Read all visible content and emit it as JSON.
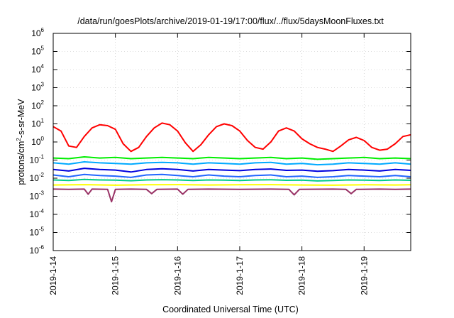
{
  "chart_data": {
    "type": "line",
    "title": "/data/run/goesPlots/archive/2019-01-19/17:00/flux/../flux/5daysMoonFluxes.txt",
    "xlabel": "Coordinated Universal Time (UTC)",
    "ylabel": "protons/cm2-s-sr-MeV",
    "ylabel_parts": {
      "pre": "protons/cm",
      "sup": "2",
      "post": "-s-sr-MeV"
    },
    "y_scale": "log",
    "ylim": [
      1e-06,
      1000000.0
    ],
    "y_ticks": [
      {
        "exp": "-6",
        "value": 1e-06
      },
      {
        "exp": "-5",
        "value": 1e-05
      },
      {
        "exp": "-4",
        "value": 0.0001
      },
      {
        "exp": "-3",
        "value": 0.001
      },
      {
        "exp": "-2",
        "value": 0.01
      },
      {
        "exp": "-1",
        "value": 0.1
      },
      {
        "exp": "0",
        "value": 1
      },
      {
        "exp": "1",
        "value": 10
      },
      {
        "exp": "2",
        "value": 100
      },
      {
        "exp": "3",
        "value": 1000
      },
      {
        "exp": "4",
        "value": 10000
      },
      {
        "exp": "5",
        "value": 100000
      },
      {
        "exp": "6",
        "value": 1000000
      }
    ],
    "y_tick_base": "10",
    "xlim": [
      "2019-01-14",
      "2019-01-19T18:00"
    ],
    "x_ticks": [
      "2019-1-14",
      "2019-1-15",
      "2019-1-16",
      "2019-1-17",
      "2019-1-18",
      "2019-1-19"
    ],
    "x_tick_dates": [
      "2019-01-14",
      "2019-01-15",
      "2019-01-16",
      "2019-01-17",
      "2019-01-18",
      "2019-01-19"
    ],
    "grid": true,
    "legend": "none",
    "series": [
      {
        "color": "#ff0000",
        "x": [
          "2019-01-14T00:00",
          "2019-01-14T03:00",
          "2019-01-14T06:00",
          "2019-01-14T09:00",
          "2019-01-14T12:00",
          "2019-01-14T15:00",
          "2019-01-14T18:00",
          "2019-01-14T21:00",
          "2019-01-15T00:00",
          "2019-01-15T03:00",
          "2019-01-15T06:00",
          "2019-01-15T09:00",
          "2019-01-15T12:00",
          "2019-01-15T15:00",
          "2019-01-15T18:00",
          "2019-01-15T21:00",
          "2019-01-16T00:00",
          "2019-01-16T03:00",
          "2019-01-16T06:00",
          "2019-01-16T09:00",
          "2019-01-16T12:00",
          "2019-01-16T15:00",
          "2019-01-16T18:00",
          "2019-01-16T21:00",
          "2019-01-17T00:00",
          "2019-01-17T03:00",
          "2019-01-17T06:00",
          "2019-01-17T09:00",
          "2019-01-17T12:00",
          "2019-01-17T15:00",
          "2019-01-17T18:00",
          "2019-01-17T21:00",
          "2019-01-18T00:00",
          "2019-01-18T03:00",
          "2019-01-18T06:00",
          "2019-01-18T09:00",
          "2019-01-18T12:00",
          "2019-01-18T15:00",
          "2019-01-18T18:00",
          "2019-01-18T21:00",
          "2019-01-19T00:00",
          "2019-01-19T03:00",
          "2019-01-19T06:00",
          "2019-01-19T09:00",
          "2019-01-19T12:00",
          "2019-01-19T15:00",
          "2019-01-19T18:00"
        ],
        "values": [
          7,
          4,
          0.6,
          0.5,
          2,
          6,
          9,
          8,
          5,
          0.8,
          0.3,
          0.5,
          2,
          6,
          11,
          9,
          4,
          0.9,
          0.3,
          0.7,
          2.5,
          7,
          10,
          8,
          4,
          1.2,
          0.5,
          0.4,
          1,
          4,
          6,
          4,
          1.5,
          0.8,
          0.5,
          0.4,
          0.3,
          0.6,
          1.3,
          1.8,
          1.2,
          0.5,
          0.35,
          0.4,
          0.8,
          2,
          2.5
        ]
      },
      {
        "color": "#00ee00",
        "x": [
          "2019-01-14T00:00",
          "2019-01-14T06:00",
          "2019-01-14T12:00",
          "2019-01-14T18:00",
          "2019-01-15T00:00",
          "2019-01-15T06:00",
          "2019-01-15T12:00",
          "2019-01-15T18:00",
          "2019-01-16T00:00",
          "2019-01-16T06:00",
          "2019-01-16T12:00",
          "2019-01-16T18:00",
          "2019-01-17T00:00",
          "2019-01-17T06:00",
          "2019-01-17T12:00",
          "2019-01-17T18:00",
          "2019-01-18T00:00",
          "2019-01-18T06:00",
          "2019-01-18T12:00",
          "2019-01-18T18:00",
          "2019-01-19T00:00",
          "2019-01-19T06:00",
          "2019-01-19T12:00",
          "2019-01-19T18:00"
        ],
        "values": [
          0.13,
          0.12,
          0.15,
          0.13,
          0.14,
          0.12,
          0.13,
          0.14,
          0.13,
          0.12,
          0.14,
          0.13,
          0.12,
          0.13,
          0.14,
          0.12,
          0.13,
          0.11,
          0.12,
          0.13,
          0.14,
          0.12,
          0.13,
          0.12
        ]
      },
      {
        "color": "#00aaff",
        "x": [
          "2019-01-14T00:00",
          "2019-01-14T06:00",
          "2019-01-14T12:00",
          "2019-01-14T18:00",
          "2019-01-15T00:00",
          "2019-01-15T06:00",
          "2019-01-15T12:00",
          "2019-01-15T18:00",
          "2019-01-16T00:00",
          "2019-01-16T06:00",
          "2019-01-16T12:00",
          "2019-01-16T18:00",
          "2019-01-17T00:00",
          "2019-01-17T06:00",
          "2019-01-17T12:00",
          "2019-01-17T18:00",
          "2019-01-18T00:00",
          "2019-01-18T06:00",
          "2019-01-18T12:00",
          "2019-01-18T18:00",
          "2019-01-19T00:00",
          "2019-01-19T06:00",
          "2019-01-19T12:00",
          "2019-01-19T18:00"
        ],
        "values": [
          0.07,
          0.06,
          0.08,
          0.07,
          0.065,
          0.06,
          0.07,
          0.075,
          0.07,
          0.06,
          0.07,
          0.065,
          0.06,
          0.07,
          0.075,
          0.06,
          0.065,
          0.055,
          0.06,
          0.07,
          0.065,
          0.06,
          0.07,
          0.06
        ]
      },
      {
        "color": "#0000dd",
        "x": [
          "2019-01-14T00:00",
          "2019-01-14T06:00",
          "2019-01-14T12:00",
          "2019-01-14T18:00",
          "2019-01-15T00:00",
          "2019-01-15T06:00",
          "2019-01-15T12:00",
          "2019-01-15T18:00",
          "2019-01-16T00:00",
          "2019-01-16T06:00",
          "2019-01-16T12:00",
          "2019-01-16T18:00",
          "2019-01-17T00:00",
          "2019-01-17T06:00",
          "2019-01-17T12:00",
          "2019-01-17T18:00",
          "2019-01-18T00:00",
          "2019-01-18T06:00",
          "2019-01-18T12:00",
          "2019-01-18T18:00",
          "2019-01-19T00:00",
          "2019-01-19T06:00",
          "2019-01-19T12:00",
          "2019-01-19T18:00"
        ],
        "values": [
          0.03,
          0.025,
          0.035,
          0.03,
          0.028,
          0.022,
          0.03,
          0.033,
          0.03,
          0.025,
          0.03,
          0.028,
          0.026,
          0.03,
          0.032,
          0.027,
          0.028,
          0.024,
          0.026,
          0.03,
          0.028,
          0.025,
          0.03,
          0.027
        ]
      },
      {
        "color": "#2266ff",
        "x": [
          "2019-01-14T00:00",
          "2019-01-14T06:00",
          "2019-01-14T12:00",
          "2019-01-14T18:00",
          "2019-01-15T00:00",
          "2019-01-15T06:00",
          "2019-01-15T12:00",
          "2019-01-15T18:00",
          "2019-01-16T00:00",
          "2019-01-16T06:00",
          "2019-01-16T12:00",
          "2019-01-16T18:00",
          "2019-01-17T00:00",
          "2019-01-17T06:00",
          "2019-01-17T12:00",
          "2019-01-17T18:00",
          "2019-01-18T00:00",
          "2019-01-18T06:00",
          "2019-01-18T12:00",
          "2019-01-18T18:00",
          "2019-01-19T00:00",
          "2019-01-19T06:00",
          "2019-01-19T12:00",
          "2019-01-19T18:00"
        ],
        "values": [
          0.015,
          0.012,
          0.016,
          0.014,
          0.013,
          0.011,
          0.015,
          0.016,
          0.014,
          0.012,
          0.015,
          0.013,
          0.012,
          0.014,
          0.015,
          0.012,
          0.013,
          0.011,
          0.012,
          0.014,
          0.013,
          0.012,
          0.014,
          0.012
        ]
      },
      {
        "color": "#00cc88",
        "x": [
          "2019-01-14T00:00",
          "2019-01-14T06:00",
          "2019-01-14T12:00",
          "2019-01-14T18:00",
          "2019-01-15T00:00",
          "2019-01-15T06:00",
          "2019-01-15T12:00",
          "2019-01-15T18:00",
          "2019-01-16T00:00",
          "2019-01-16T06:00",
          "2019-01-16T12:00",
          "2019-01-16T18:00",
          "2019-01-17T00:00",
          "2019-01-17T06:00",
          "2019-01-17T12:00",
          "2019-01-17T18:00",
          "2019-01-18T00:00",
          "2019-01-18T06:00",
          "2019-01-18T12:00",
          "2019-01-18T18:00",
          "2019-01-19T00:00",
          "2019-01-19T06:00",
          "2019-01-19T12:00",
          "2019-01-19T18:00"
        ],
        "values": [
          0.008,
          0.0075,
          0.0085,
          0.008,
          0.0078,
          0.0072,
          0.008,
          0.0083,
          0.008,
          0.0075,
          0.008,
          0.0078,
          0.0075,
          0.008,
          0.0082,
          0.0076,
          0.0078,
          0.007,
          0.0075,
          0.008,
          0.0078,
          0.0074,
          0.008,
          0.0076
        ]
      },
      {
        "color": "#ffff00",
        "x": [
          "2019-01-14T00:00",
          "2019-01-14T12:00",
          "2019-01-15T00:00",
          "2019-01-15T12:00",
          "2019-01-16T00:00",
          "2019-01-16T12:00",
          "2019-01-17T00:00",
          "2019-01-17T12:00",
          "2019-01-18T00:00",
          "2019-01-18T12:00",
          "2019-01-19T00:00",
          "2019-01-19T12:00",
          "2019-01-19T18:00"
        ],
        "values": [
          0.0042,
          0.0044,
          0.0041,
          0.0043,
          0.0044,
          0.0042,
          0.0043,
          0.0044,
          0.0042,
          0.0041,
          0.0043,
          0.0042,
          0.0043
        ]
      },
      {
        "color": "#993366",
        "x": [
          "2019-01-14T00:00",
          "2019-01-14T06:00",
          "2019-01-14T12:00",
          "2019-01-14T13:30",
          "2019-01-14T15:00",
          "2019-01-14T21:00",
          "2019-01-14T22:30",
          "2019-01-15T00:00",
          "2019-01-15T06:00",
          "2019-01-15T12:00",
          "2019-01-15T14:00",
          "2019-01-15T16:00",
          "2019-01-16T00:00",
          "2019-01-16T02:00",
          "2019-01-16T04:00",
          "2019-01-16T12:00",
          "2019-01-17T00:00",
          "2019-01-17T12:00",
          "2019-01-17T19:00",
          "2019-01-17T21:00",
          "2019-01-17T23:00",
          "2019-01-18T12:00",
          "2019-01-18T17:00",
          "2019-01-18T19:00",
          "2019-01-18T21:00",
          "2019-01-19T06:00",
          "2019-01-19T12:00",
          "2019-01-19T18:00"
        ],
        "values": [
          0.0025,
          0.0024,
          0.0025,
          0.0013,
          0.0025,
          0.0024,
          0.0005,
          0.0024,
          0.0025,
          0.0024,
          0.0014,
          0.0024,
          0.0025,
          0.0013,
          0.0024,
          0.0025,
          0.0024,
          0.0025,
          0.0024,
          0.0012,
          0.0024,
          0.0025,
          0.0024,
          0.0014,
          0.0024,
          0.0025,
          0.0024,
          0.0025
        ]
      }
    ]
  }
}
